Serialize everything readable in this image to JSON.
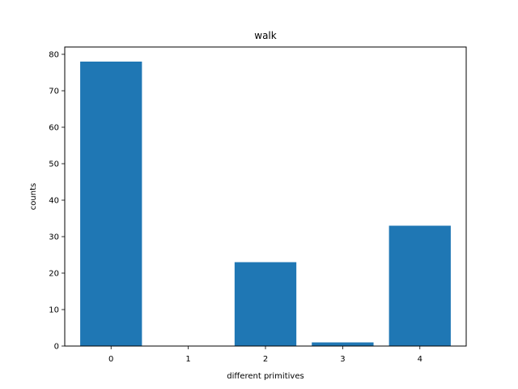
{
  "chart_data": {
    "type": "bar",
    "title": "walk",
    "xlabel": "different primitives",
    "ylabel": "counts",
    "categories": [
      "0",
      "1",
      "2",
      "3",
      "4"
    ],
    "values": [
      78,
      0,
      23,
      1,
      33
    ],
    "ylim": [
      0,
      82
    ],
    "yticks": [
      0,
      10,
      20,
      30,
      40,
      50,
      60,
      70,
      80
    ],
    "xlim": [
      -0.6,
      4.6
    ],
    "bar_width": 0.8,
    "bar_color": "#1f77b4",
    "grid": false,
    "legend": "none"
  }
}
